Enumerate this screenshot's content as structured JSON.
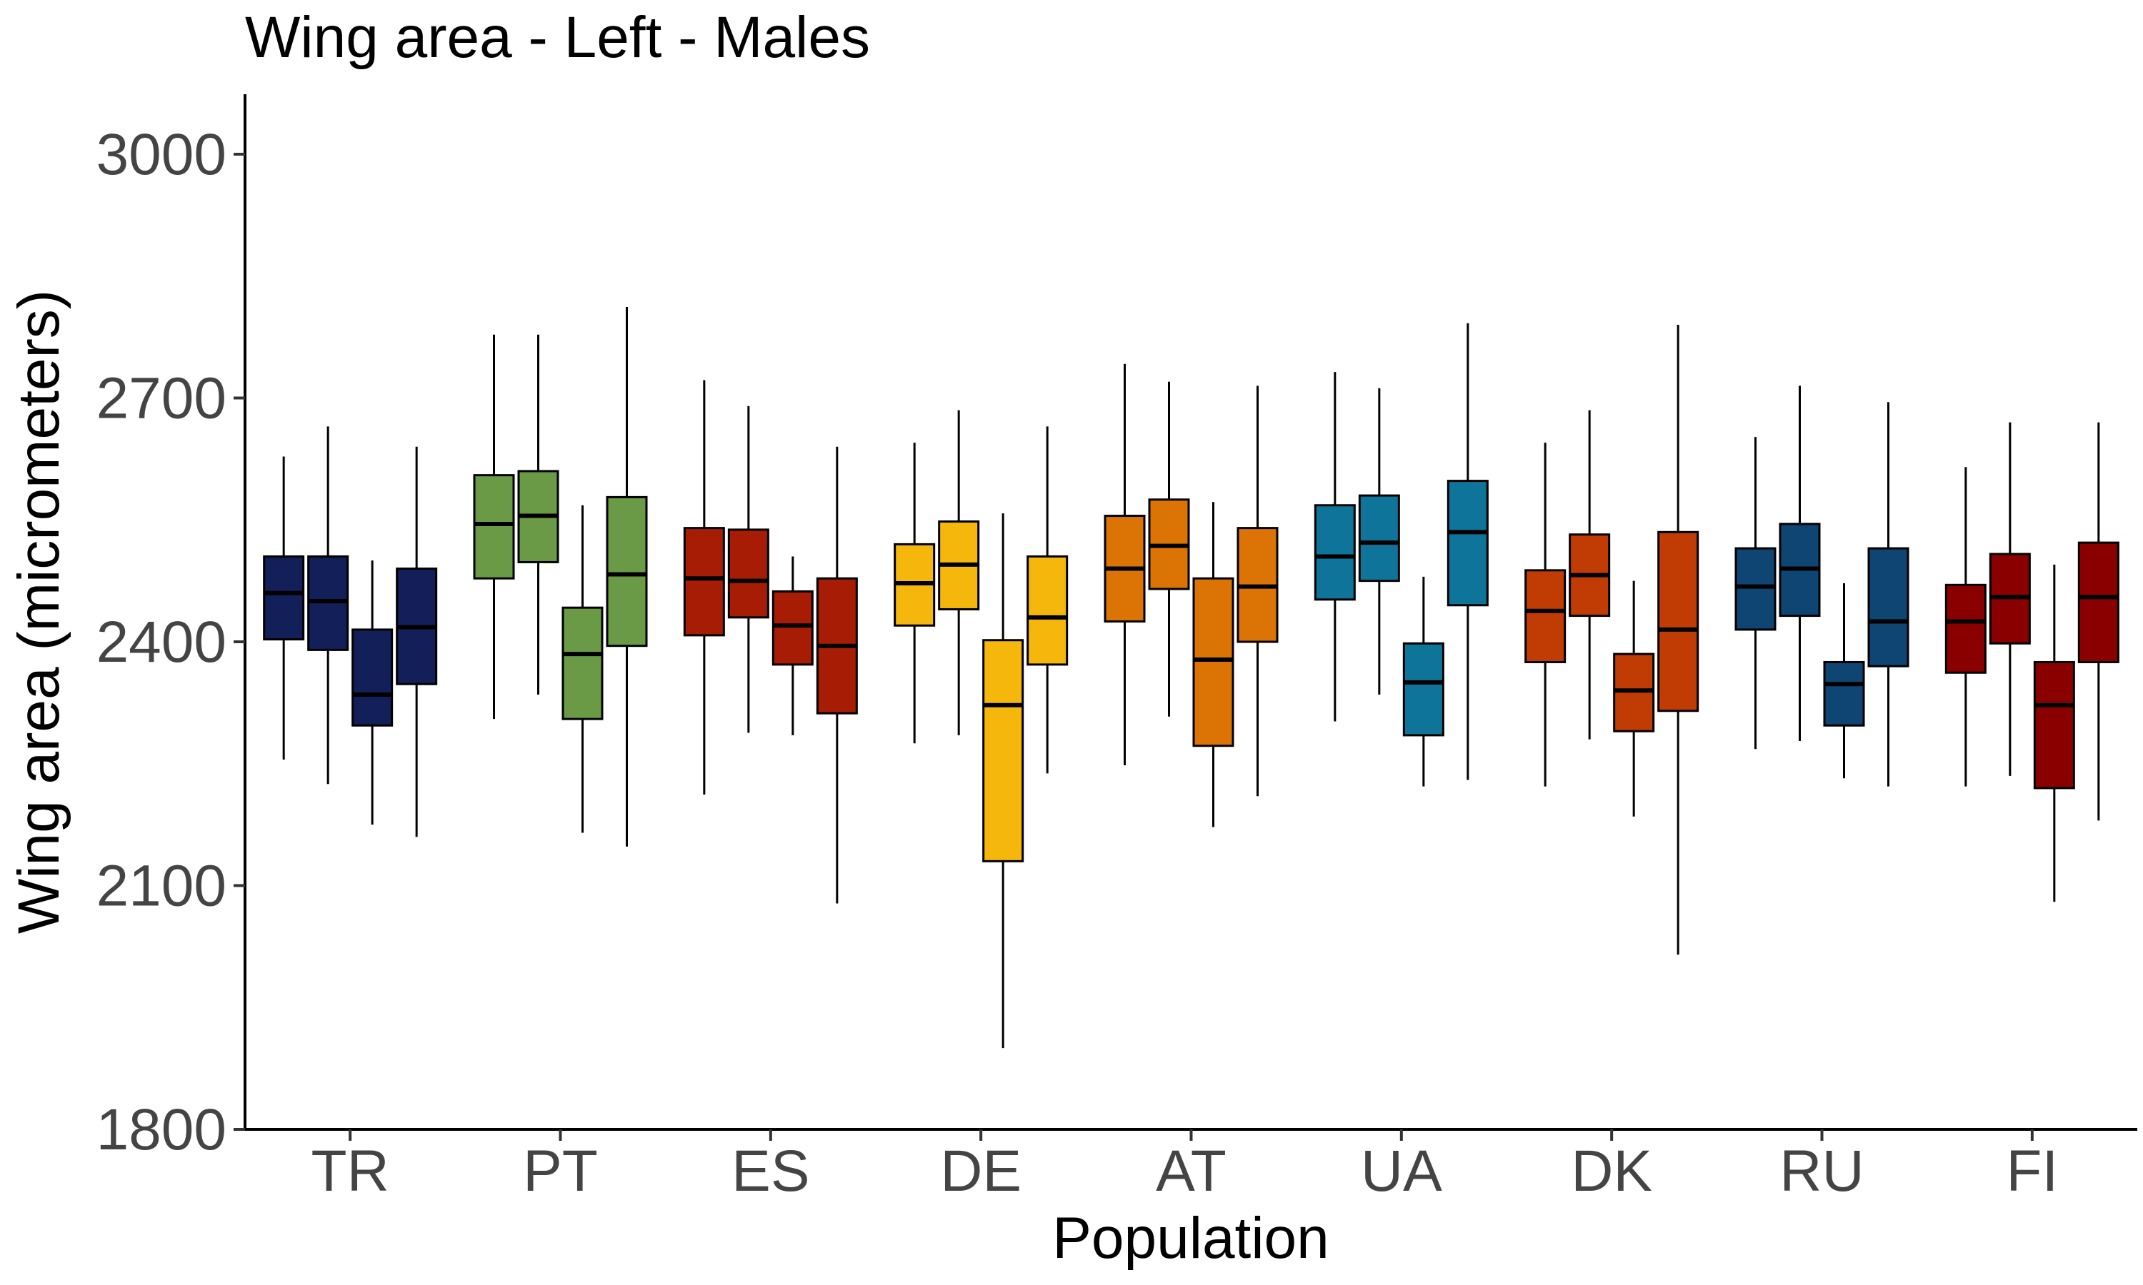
{
  "chart_data": {
    "type": "boxplot",
    "title": "Wing area - Left - Males",
    "xlabel": "Population",
    "ylabel": "Wing area (micrometers)",
    "ylim": [
      1800,
      3070
    ],
    "yticks": [
      1800,
      2100,
      2400,
      2700,
      3000
    ],
    "ytick_labels": [
      "1800",
      "2100",
      "2400",
      "2700",
      "3000"
    ],
    "grid": false,
    "legend": "none",
    "groups": [
      {
        "name": "TR",
        "color": "#121f59",
        "boxes": [
          {
            "min": 2255,
            "q1": 2403,
            "median": 2460,
            "q3": 2505,
            "max": 2628
          },
          {
            "min": 2225,
            "q1": 2390,
            "median": 2450,
            "q3": 2505,
            "max": 2665
          },
          {
            "min": 2175,
            "q1": 2297,
            "median": 2335,
            "q3": 2415,
            "max": 2500
          },
          {
            "min": 2160,
            "q1": 2348,
            "median": 2418,
            "q3": 2490,
            "max": 2640
          }
        ]
      },
      {
        "name": "PT",
        "color": "#6a9a45",
        "boxes": [
          {
            "min": 2305,
            "q1": 2478,
            "median": 2545,
            "q3": 2605,
            "max": 2778
          },
          {
            "min": 2335,
            "q1": 2498,
            "median": 2555,
            "q3": 2610,
            "max": 2778
          },
          {
            "min": 2165,
            "q1": 2305,
            "median": 2385,
            "q3": 2442,
            "max": 2568
          },
          {
            "min": 2148,
            "q1": 2395,
            "median": 2483,
            "q3": 2578,
            "max": 2812
          }
        ]
      },
      {
        "name": "ES",
        "color": "#a61c05",
        "boxes": [
          {
            "min": 2212,
            "q1": 2408,
            "median": 2478,
            "q3": 2540,
            "max": 2722
          },
          {
            "min": 2288,
            "q1": 2430,
            "median": 2475,
            "q3": 2538,
            "max": 2690
          },
          {
            "min": 2285,
            "q1": 2372,
            "median": 2420,
            "q3": 2462,
            "max": 2505
          },
          {
            "min": 2078,
            "q1": 2312,
            "median": 2395,
            "q3": 2478,
            "max": 2640
          }
        ]
      },
      {
        "name": "DE",
        "color": "#f5b70b",
        "boxes": [
          {
            "min": 2275,
            "q1": 2420,
            "median": 2472,
            "q3": 2520,
            "max": 2645
          },
          {
            "min": 2285,
            "q1": 2440,
            "median": 2495,
            "q3": 2548,
            "max": 2685
          },
          {
            "min": 1900,
            "q1": 2130,
            "median": 2322,
            "q3": 2402,
            "max": 2558
          },
          {
            "min": 2238,
            "q1": 2372,
            "median": 2430,
            "q3": 2505,
            "max": 2665
          }
        ]
      },
      {
        "name": "AT",
        "color": "#dc7305",
        "boxes": [
          {
            "min": 2248,
            "q1": 2425,
            "median": 2490,
            "q3": 2555,
            "max": 2742
          },
          {
            "min": 2308,
            "q1": 2465,
            "median": 2518,
            "q3": 2575,
            "max": 2720
          },
          {
            "min": 2172,
            "q1": 2272,
            "median": 2378,
            "q3": 2478,
            "max": 2572
          },
          {
            "min": 2210,
            "q1": 2400,
            "median": 2468,
            "q3": 2540,
            "max": 2715
          }
        ]
      },
      {
        "name": "UA",
        "color": "#0f7499",
        "boxes": [
          {
            "min": 2302,
            "q1": 2452,
            "median": 2505,
            "q3": 2568,
            "max": 2732
          },
          {
            "min": 2335,
            "q1": 2475,
            "median": 2522,
            "q3": 2580,
            "max": 2712
          },
          {
            "min": 2222,
            "q1": 2285,
            "median": 2350,
            "q3": 2398,
            "max": 2480
          },
          {
            "min": 2230,
            "q1": 2445,
            "median": 2535,
            "q3": 2598,
            "max": 2792
          }
        ]
      },
      {
        "name": "DK",
        "color": "#c13b05",
        "boxes": [
          {
            "min": 2222,
            "q1": 2375,
            "median": 2438,
            "q3": 2488,
            "max": 2645
          },
          {
            "min": 2280,
            "q1": 2432,
            "median": 2482,
            "q3": 2532,
            "max": 2685
          },
          {
            "min": 2185,
            "q1": 2290,
            "median": 2340,
            "q3": 2385,
            "max": 2475
          },
          {
            "min": 2015,
            "q1": 2315,
            "median": 2415,
            "q3": 2535,
            "max": 2790
          }
        ]
      },
      {
        "name": "RU",
        "color": "#0f4573",
        "boxes": [
          {
            "min": 2268,
            "q1": 2415,
            "median": 2468,
            "q3": 2515,
            "max": 2652
          },
          {
            "min": 2278,
            "q1": 2432,
            "median": 2490,
            "q3": 2545,
            "max": 2715
          },
          {
            "min": 2232,
            "q1": 2297,
            "median": 2348,
            "q3": 2375,
            "max": 2472
          },
          {
            "min": 2222,
            "q1": 2370,
            "median": 2425,
            "q3": 2515,
            "max": 2695
          }
        ]
      },
      {
        "name": "FI",
        "color": "#8a0000",
        "boxes": [
          {
            "min": 2222,
            "q1": 2362,
            "median": 2425,
            "q3": 2470,
            "max": 2615
          },
          {
            "min": 2235,
            "q1": 2398,
            "median": 2455,
            "q3": 2508,
            "max": 2670
          },
          {
            "min": 2080,
            "q1": 2220,
            "median": 2322,
            "q3": 2375,
            "max": 2495
          },
          {
            "min": 2180,
            "q1": 2375,
            "median": 2455,
            "q3": 2522,
            "max": 2670
          }
        ]
      }
    ]
  }
}
